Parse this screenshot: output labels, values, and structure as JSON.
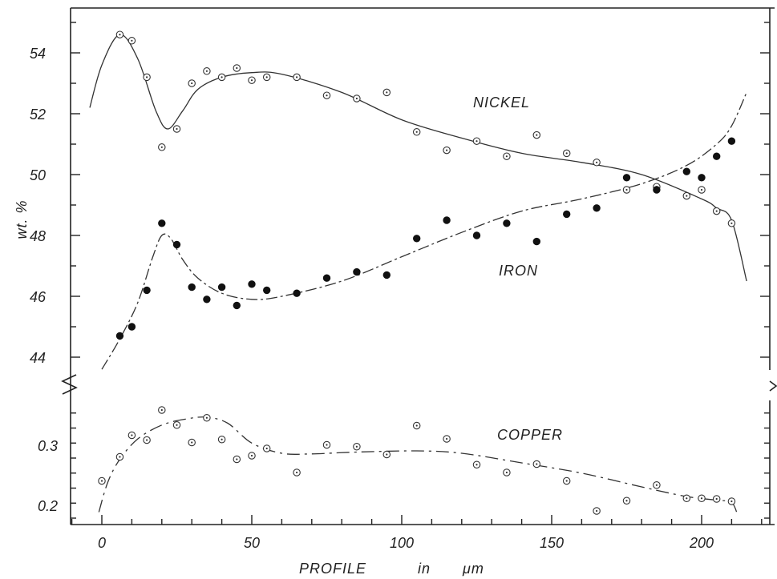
{
  "chart_data": {
    "type": "scatter",
    "title": "",
    "xlabel": {
      "word1": "PROFILE",
      "word2": "in",
      "word3": "μm"
    },
    "ylabel": "wt. %",
    "xlim": [
      -10,
      220
    ],
    "x_ticks": [
      "0",
      "50",
      "100",
      "150",
      "200"
    ],
    "upper_panel": {
      "ylim": [
        42.5,
        55.5
      ],
      "y_ticks": [
        "44",
        "46",
        "48",
        "50",
        "52",
        "54"
      ]
    },
    "lower_panel": {
      "ylim": [
        0.18,
        0.38
      ],
      "y_ticks": [
        "0.2",
        "0.3"
      ]
    },
    "series": [
      {
        "name": "NICKEL",
        "panel": "upper",
        "marker": "open-circle",
        "x": [
          6,
          10,
          15,
          20,
          25,
          30,
          35,
          40,
          45,
          50,
          55,
          65,
          75,
          85,
          95,
          105,
          115,
          125,
          135,
          145,
          155,
          165,
          175,
          185,
          195,
          200,
          205,
          210
        ],
        "y": [
          54.6,
          54.4,
          53.2,
          50.9,
          51.5,
          53.0,
          53.4,
          53.2,
          53.5,
          53.1,
          53.2,
          53.2,
          52.6,
          52.5,
          52.7,
          51.4,
          50.8,
          51.1,
          50.6,
          51.3,
          50.7,
          50.4,
          49.5,
          49.6,
          49.3,
          49.5,
          48.8,
          48.4
        ],
        "fit": {
          "x": [
            -4,
            0,
            6,
            12,
            18,
            22,
            27,
            32,
            40,
            50,
            60,
            80,
            100,
            120,
            140,
            160,
            180,
            200,
            205,
            210,
            215
          ],
          "y": [
            52.2,
            53.6,
            54.6,
            53.8,
            52.1,
            51.5,
            52.1,
            52.8,
            53.2,
            53.35,
            53.3,
            52.7,
            51.8,
            51.2,
            50.7,
            50.4,
            50.0,
            49.2,
            48.9,
            48.5,
            46.5
          ]
        }
      },
      {
        "name": "IRON",
        "panel": "upper",
        "marker": "filled-circle",
        "x": [
          6,
          10,
          15,
          20,
          25,
          30,
          35,
          40,
          45,
          50,
          55,
          65,
          75,
          85,
          95,
          105,
          115,
          125,
          135,
          145,
          155,
          165,
          175,
          185,
          195,
          200,
          205,
          210
        ],
        "y": [
          44.7,
          45.0,
          46.2,
          48.4,
          47.7,
          46.3,
          45.9,
          46.3,
          45.7,
          46.4,
          46.2,
          46.1,
          46.6,
          46.8,
          46.7,
          47.9,
          48.5,
          48.0,
          48.4,
          47.8,
          48.7,
          48.9,
          49.9,
          49.5,
          50.1,
          49.9,
          50.6,
          51.1
        ],
        "fit": {
          "x": [
            0,
            6,
            12,
            17,
            20,
            23,
            27,
            32,
            40,
            50,
            60,
            80,
            100,
            120,
            140,
            160,
            180,
            195,
            205,
            210,
            215
          ],
          "y": [
            43.6,
            44.6,
            45.8,
            47.3,
            48.0,
            47.9,
            47.2,
            46.6,
            46.1,
            45.9,
            46.0,
            46.5,
            47.3,
            48.1,
            48.8,
            49.2,
            49.7,
            50.3,
            51.0,
            51.6,
            52.7
          ]
        }
      },
      {
        "name": "COPPER",
        "panel": "lower",
        "marker": "open-circle",
        "x": [
          0,
          6,
          10,
          15,
          20,
          25,
          30,
          35,
          40,
          45,
          50,
          55,
          65,
          75,
          85,
          95,
          105,
          115,
          125,
          135,
          145,
          155,
          165,
          175,
          185,
          195,
          200,
          205,
          210
        ],
        "y": [
          0.242,
          0.282,
          0.318,
          0.31,
          0.36,
          0.335,
          0.306,
          0.347,
          0.311,
          0.278,
          0.284,
          0.296,
          0.256,
          0.302,
          0.299,
          0.286,
          0.334,
          0.312,
          0.269,
          0.256,
          0.27,
          0.242,
          0.192,
          0.209,
          0.235,
          0.213,
          0.213,
          0.212,
          0.208
        ],
        "fit": {
          "x": [
            -1,
            2,
            6,
            12,
            20,
            28,
            35,
            42,
            50,
            60,
            70,
            85,
            105,
            120,
            140,
            160,
            180,
            195,
            205,
            210,
            212
          ],
          "y": [
            0.19,
            0.24,
            0.278,
            0.312,
            0.335,
            0.345,
            0.348,
            0.338,
            0.305,
            0.288,
            0.287,
            0.29,
            0.292,
            0.288,
            0.272,
            0.255,
            0.232,
            0.216,
            0.21,
            0.206,
            0.185
          ]
        }
      }
    ],
    "annotations": [
      {
        "text": "NICKEL",
        "x": 145,
        "y": 52.4
      },
      {
        "text": "IRON",
        "x": 140,
        "y": 46.8
      },
      {
        "text": "COPPER",
        "x": 147,
        "y": 0.322
      }
    ]
  }
}
